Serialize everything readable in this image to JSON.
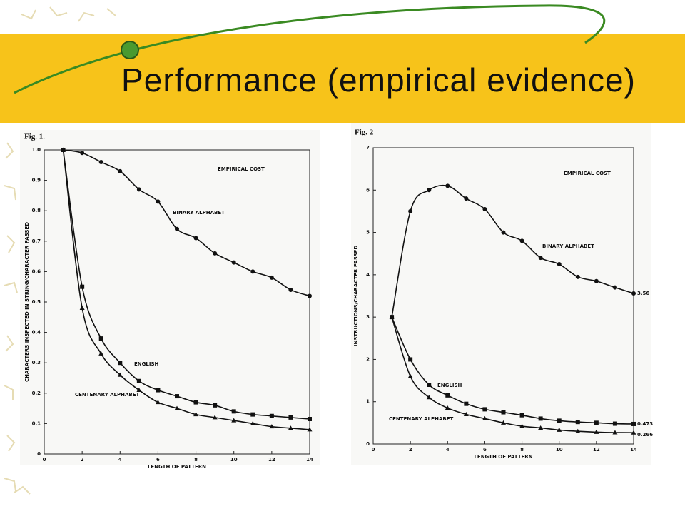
{
  "title": "Performance (empirical evidence)",
  "chart_data": [
    {
      "type": "line",
      "title": "Fig. 1.",
      "xlabel": "LENGTH OF PATTERN",
      "ylabel": "CHARACTERS INSPECTED IN STRING/CHARACTER PASSED",
      "annotations": [
        "EMPIRICAL COST",
        "BINARY ALPHABET",
        "ENGLISH",
        "CENTENARY ALPHABET"
      ],
      "x": [
        1,
        2,
        3,
        4,
        5,
        6,
        7,
        8,
        9,
        10,
        11,
        12,
        13,
        14
      ],
      "series": [
        {
          "name": "BINARY ALPHABET",
          "color": "#111111",
          "marker": "circle",
          "values": [
            1.0,
            0.99,
            0.96,
            0.93,
            0.87,
            0.83,
            0.74,
            0.71,
            0.66,
            0.63,
            0.6,
            0.58,
            0.54,
            0.52
          ]
        },
        {
          "name": "ENGLISH",
          "color": "#111111",
          "marker": "square",
          "values": [
            1.0,
            0.55,
            0.38,
            0.3,
            0.24,
            0.21,
            0.19,
            0.17,
            0.16,
            0.14,
            0.13,
            0.125,
            0.12,
            0.115
          ]
        },
        {
          "name": "CENTENARY ALPHABET",
          "color": "#111111",
          "marker": "triangle",
          "values": [
            1.0,
            0.48,
            0.33,
            0.26,
            0.21,
            0.17,
            0.15,
            0.13,
            0.12,
            0.11,
            0.1,
            0.09,
            0.085,
            0.08
          ]
        }
      ],
      "xlim": [
        0,
        14
      ],
      "xticks": [
        0,
        2,
        4,
        6,
        8,
        10,
        12,
        14
      ],
      "ylim": [
        0,
        1
      ],
      "yticks": [
        0,
        0.1,
        0.2,
        0.3,
        0.4,
        0.5,
        0.6,
        0.7,
        0.8,
        0.9,
        {
          "value": 1,
          "label": "1.0"
        }
      ]
    },
    {
      "type": "line",
      "title": "Fig. 2",
      "xlabel": "LENGTH OF PATTERN",
      "ylabel": "INSTRUCTIONS/CHARACTER PASSED",
      "annotations": [
        "EMPIRICAL COST",
        "BINARY ALPHABET",
        "ENGLISH",
        "CENTENARY ALPHABET"
      ],
      "x": [
        1,
        2,
        3,
        4,
        5,
        6,
        7,
        8,
        9,
        10,
        11,
        12,
        13,
        14
      ],
      "series": [
        {
          "name": "BINARY ALPHABET",
          "color": "#111111",
          "marker": "circle",
          "values": [
            3.0,
            5.5,
            6.0,
            6.1,
            5.8,
            5.55,
            5.0,
            4.8,
            4.4,
            4.25,
            3.95,
            3.85,
            3.7,
            3.56
          ]
        },
        {
          "name": "ENGLISH",
          "color": "#111111",
          "marker": "square",
          "values": [
            3.0,
            2.0,
            1.4,
            1.15,
            0.95,
            0.82,
            0.75,
            0.68,
            0.6,
            0.55,
            0.52,
            0.5,
            0.48,
            0.473
          ]
        },
        {
          "name": "CENTENARY ALPHABET",
          "color": "#111111",
          "marker": "triangle",
          "values": [
            3.0,
            1.6,
            1.1,
            0.85,
            0.7,
            0.6,
            0.5,
            0.42,
            0.38,
            0.33,
            0.3,
            0.28,
            0.27,
            0.266
          ]
        }
      ],
      "end_labels": true,
      "xlim": [
        0,
        14
      ],
      "xticks": [
        0,
        2,
        4,
        6,
        8,
        10,
        12,
        14
      ],
      "ylim": [
        0,
        7
      ],
      "yticks": [
        0,
        1,
        2,
        3,
        4,
        5,
        6,
        7
      ]
    }
  ]
}
